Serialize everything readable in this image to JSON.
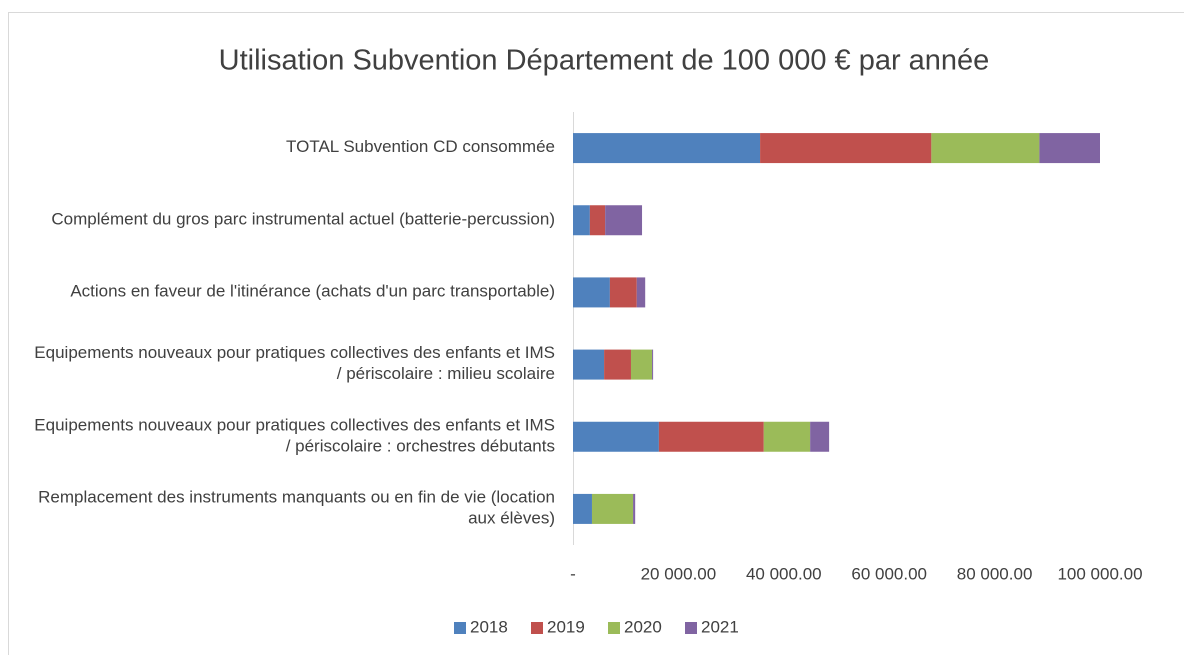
{
  "chart_data": {
    "type": "stacked_barh",
    "title": "Utilisation Subvention Département de 100 000 € par année",
    "categories": [
      "TOTAL Subvention CD consommée",
      "Complément du gros parc instrumental actuel (batterie-percussion)",
      "Actions en faveur de l'itinérance (achats d'un parc transportable)",
      "Equipements nouveaux pour pratiques collectives des enfants et IMS / périscolaire : milieu scolaire",
      "Equipements nouveaux pour pratiques collectives des enfants et IMS / périscolaire : orchestres débutants",
      "Remplacement des instruments manquants ou en fin de vie (location aux élèves)"
    ],
    "series": [
      {
        "name": "2018",
        "color": "#4f81bd",
        "values": [
          35500,
          3200,
          7000,
          5900,
          16300,
          3600
        ]
      },
      {
        "name": "2019",
        "color": "#c0504d",
        "values": [
          32500,
          2900,
          5100,
          5100,
          19900,
          0
        ]
      },
      {
        "name": "2020",
        "color": "#9bbb59",
        "values": [
          20500,
          0,
          0,
          4000,
          8800,
          7800
        ]
      },
      {
        "name": "2021",
        "color": "#8064a2",
        "values": [
          11500,
          7000,
          1600,
          200,
          3600,
          400
        ]
      }
    ],
    "xlim": [
      0,
      100000
    ],
    "xticks": [
      {
        "value": 0,
        "label": "-"
      },
      {
        "value": 20000,
        "label": "20 000.00"
      },
      {
        "value": 40000,
        "label": "40 000.00"
      },
      {
        "value": 60000,
        "label": "60 000.00"
      },
      {
        "value": 80000,
        "label": "80 000.00"
      },
      {
        "value": 100000,
        "label": "100 000.00"
      }
    ],
    "legend": "bottom"
  }
}
